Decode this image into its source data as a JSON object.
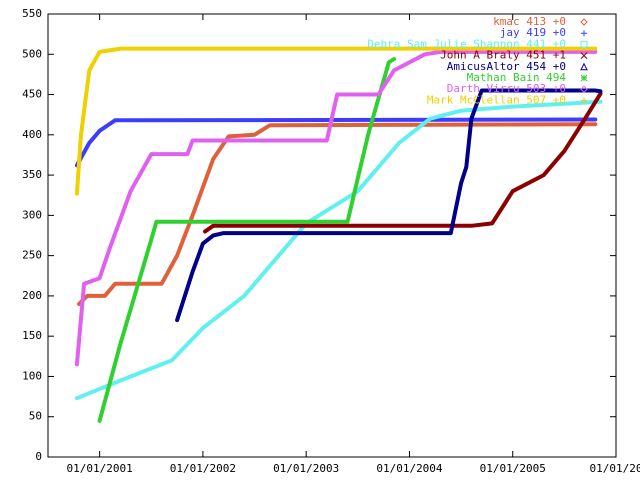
{
  "chart_data": {
    "type": "line",
    "xlim": [
      2000.5,
      2006
    ],
    "ylim": [
      0,
      550
    ],
    "xticks": [
      {
        "value": 2001,
        "label": "01/01/2001"
      },
      {
        "value": 2002,
        "label": "01/01/2002"
      },
      {
        "value": 2003,
        "label": "01/01/2003"
      },
      {
        "value": 2004,
        "label": "01/01/2004"
      },
      {
        "value": 2005,
        "label": "01/01/2005"
      },
      {
        "value": 2006,
        "label": "01/01/20"
      }
    ],
    "yticks": [
      0,
      50,
      100,
      150,
      200,
      250,
      300,
      350,
      400,
      450,
      500,
      550
    ],
    "legend": "top-right",
    "series": [
      {
        "name": "kmac 413 +0",
        "color": "#e0603c",
        "marker": "diamond",
        "x": [
          2000.8,
          2000.88,
          2001.05,
          2001.15,
          2001.6,
          2001.75,
          2001.9,
          2002.1,
          2002.25,
          2002.5,
          2002.65,
          2005.8
        ],
        "values": [
          190,
          200,
          200,
          215,
          215,
          250,
          300,
          370,
          398,
          400,
          412,
          413
        ]
      },
      {
        "name": "jay 419 +0",
        "color": "#3c3cff",
        "marker": "plus",
        "x": [
          2000.78,
          2000.9,
          2001.0,
          2001.15,
          2005.8
        ],
        "values": [
          362,
          390,
          405,
          418,
          419
        ]
      },
      {
        "name": "Debra  Sam  Julie Shannon 441 +0",
        "color": "#60f0f0",
        "marker": "box",
        "x": [
          2000.78,
          2001.3,
          2001.7,
          2001.85,
          2002.0,
          2002.4,
          2003.0,
          2003.5,
          2003.9,
          2004.2,
          2004.5,
          2005.0,
          2005.85
        ],
        "values": [
          73,
          100,
          120,
          140,
          160,
          200,
          290,
          330,
          390,
          420,
          430,
          435,
          441
        ]
      },
      {
        "name": "John A  Braly 451 +1",
        "color": "#8b0000",
        "marker": "cross",
        "x": [
          2002.02,
          2002.1,
          2004.6,
          2004.8,
          2005.0,
          2005.3,
          2005.5,
          2005.7,
          2005.85
        ],
        "values": [
          280,
          287,
          287,
          290,
          330,
          350,
          380,
          420,
          451
        ]
      },
      {
        "name": "AmicusAltor 454 +0",
        "color": "#00008b",
        "marker": "triangle",
        "x": [
          2001.75,
          2001.9,
          2002.0,
          2002.1,
          2002.2,
          2004.4,
          2004.5,
          2004.55,
          2004.6,
          2004.7,
          2005.8,
          2005.85
        ],
        "values": [
          170,
          230,
          265,
          275,
          278,
          278,
          340,
          360,
          420,
          455,
          455,
          454
        ]
      },
      {
        "name": "Mathan Bain 494",
        "color": "#30d030",
        "marker": "star",
        "x": [
          2001.0,
          2001.2,
          2001.5,
          2001.55,
          2003.4,
          2003.6,
          2003.8,
          2003.85
        ],
        "values": [
          45,
          140,
          270,
          292,
          292,
          400,
          490,
          494
        ]
      },
      {
        "name": "Darth Virru 503 +0",
        "color": "#e060f0",
        "marker": "diamond",
        "x": [
          2000.78,
          2000.85,
          2001.0,
          2001.1,
          2001.3,
          2001.5,
          2001.85,
          2001.9,
          2003.2,
          2003.3,
          2003.7,
          2003.85,
          2004.15,
          2004.3,
          2005.8
        ],
        "values": [
          115,
          215,
          222,
          260,
          330,
          376,
          376,
          393,
          393,
          450,
          450,
          480,
          500,
          503,
          503
        ]
      },
      {
        "name": "Mark McClellan 507 +0",
        "color": "#f0d000",
        "marker": "plus",
        "x": [
          2000.78,
          2000.82,
          2000.9,
          2001.0,
          2001.2,
          2005.8
        ],
        "values": [
          327,
          400,
          480,
          503,
          507,
          507
        ]
      }
    ]
  }
}
